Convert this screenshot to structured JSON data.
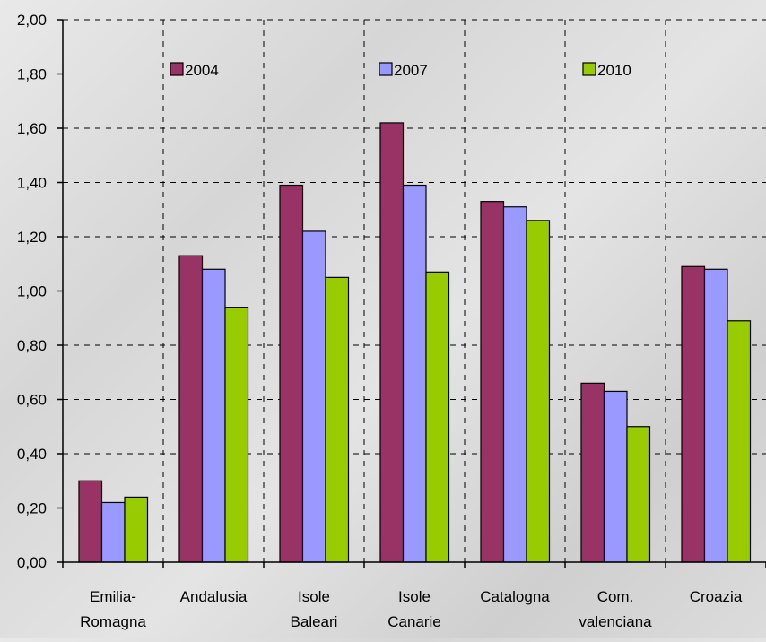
{
  "chart_data": {
    "type": "bar",
    "title": "",
    "xlabel": "",
    "ylabel": "",
    "ylim": [
      0,
      2.0
    ],
    "yticks": [
      "0,00",
      "0,20",
      "0,40",
      "0,60",
      "0,80",
      "1,00",
      "1,20",
      "1,40",
      "1,60",
      "1,80",
      "2,00"
    ],
    "ytick_values": [
      0,
      0.2,
      0.4,
      0.6,
      0.8,
      1.0,
      1.2,
      1.4,
      1.6,
      1.8,
      2.0
    ],
    "categories": [
      [
        "Emilia-",
        "Romagna"
      ],
      [
        "Andalusia"
      ],
      [
        "Isole",
        "Baleari"
      ],
      [
        "Isole",
        "Canarie"
      ],
      [
        "Catalogna"
      ],
      [
        "Com.",
        "valenciana"
      ],
      [
        "Croazia"
      ]
    ],
    "series": [
      {
        "name": "2004",
        "color": "#993366",
        "values": [
          0.3,
          1.13,
          1.39,
          1.62,
          1.33,
          0.66,
          1.09
        ]
      },
      {
        "name": "2007",
        "color": "#9999ff",
        "values": [
          0.22,
          1.08,
          1.22,
          1.39,
          1.31,
          0.63,
          1.08
        ]
      },
      {
        "name": "2010",
        "color": "#99cc00",
        "values": [
          0.24,
          0.94,
          1.05,
          1.07,
          1.26,
          0.5,
          0.89
        ]
      }
    ],
    "grid": true,
    "legend_position": "top"
  }
}
